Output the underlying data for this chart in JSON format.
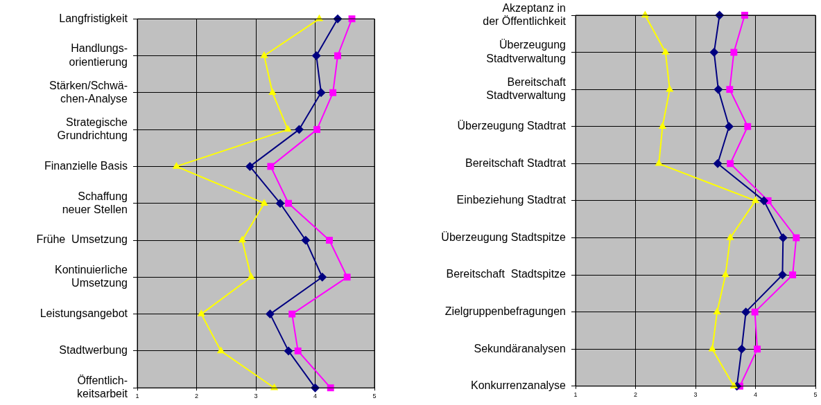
{
  "chart_data": [
    {
      "type": "line",
      "orientation": "horizontal",
      "categories": [
        "Langfristigkeit",
        "Handlungs-\norientierung",
        "Stärken/Schwä-\nchen-Analyse",
        "Strategische\nGrundrichtung",
        "Finanzielle Basis",
        "Schaffung\nneuer Stellen",
        "Frühe  Umsetzung",
        "Kontinuierliche\nUmsetzung",
        "Leistungsangebot",
        "Stadtwerbung",
        "Öffentlich-\nkeitsarbeit"
      ],
      "series": [
        {
          "color": "#ffff00",
          "marker": "triangle",
          "values": [
            4.07,
            3.14,
            3.28,
            3.54,
            1.66,
            3.14,
            2.77,
            2.92,
            2.08,
            2.41,
            3.31
          ]
        },
        {
          "color": "#000080",
          "marker": "diamond",
          "values": [
            4.38,
            4.02,
            4.1,
            3.73,
            2.9,
            3.41,
            3.84,
            4.12,
            3.24,
            3.55,
            4.0
          ]
        },
        {
          "color": "#ff00ff",
          "marker": "square",
          "values": [
            4.62,
            4.38,
            4.3,
            4.03,
            3.25,
            3.55,
            4.24,
            4.54,
            3.61,
            3.71,
            4.26
          ]
        }
      ],
      "xlim": [
        1,
        5
      ],
      "xticks": [
        1,
        2,
        3,
        4,
        5
      ],
      "grid": true,
      "legend": false
    },
    {
      "type": "line",
      "orientation": "horizontal",
      "categories": [
        "Akzeptanz in\nder Öffentlichkeit",
        "Überzeugung\nStadtverwaltung",
        "Bereitschaft\nStadtverwaltung",
        "Überzeugung Stadtrat",
        "Bereitschaft Stadtrat",
        "Einbeziehung Stadtrat",
        "Überzeugung Stadtspitze",
        "Bereitschaft  Stadtspitze",
        "Zielgruppenbefragungen",
        "Sekundäranalysen",
        "Konkurrenzanalyse"
      ],
      "series": [
        {
          "color": "#ffff00",
          "marker": "triangle",
          "values": [
            2.16,
            2.5,
            2.57,
            2.45,
            2.39,
            4.0,
            3.58,
            3.5,
            3.36,
            3.28,
            3.64
          ]
        },
        {
          "color": "#000080",
          "marker": "diamond",
          "values": [
            3.4,
            3.31,
            3.38,
            3.56,
            3.37,
            4.14,
            4.46,
            4.45,
            3.84,
            3.77,
            3.69
          ]
        },
        {
          "color": "#ff00ff",
          "marker": "square",
          "values": [
            3.82,
            3.64,
            3.57,
            3.87,
            3.58,
            4.21,
            4.68,
            4.62,
            3.99,
            4.03,
            3.74
          ]
        }
      ],
      "xlim": [
        1,
        5
      ],
      "xticks": [
        1,
        2,
        3,
        4,
        5
      ],
      "grid": true,
      "legend": false
    }
  ]
}
